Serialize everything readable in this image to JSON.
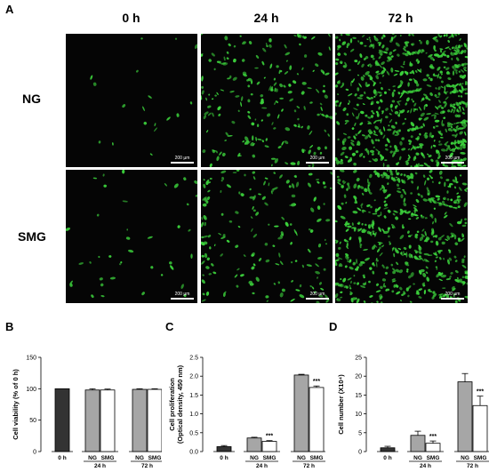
{
  "figure": {
    "panel_labels": [
      "A",
      "B",
      "C",
      "D"
    ],
    "column_headers": [
      "0 h",
      "24 h",
      "72 h"
    ],
    "row_headers": [
      "NG",
      "SMG"
    ],
    "scale_bar_label": "200 µm",
    "colors": {
      "micro_bg": "#050505",
      "cells": "#3cd23c",
      "bar_dark": "#333333",
      "bar_grey": "#a6a6a6",
      "bar_white": "#ffffff"
    }
  },
  "chart_data": [
    {
      "type": "bar",
      "panel": "B",
      "ylabel": "Cell viability (% of 0 h)",
      "ylim": [
        0,
        150
      ],
      "yticks": [
        "0",
        "50",
        "100",
        "150"
      ],
      "bars": [
        {
          "group": "0 h",
          "label": "",
          "value": 100,
          "err": 0,
          "fill": "dark",
          "sig": ""
        },
        {
          "group": "24 h",
          "label": "NG",
          "value": 98,
          "err": 2,
          "fill": "grey",
          "sig": ""
        },
        {
          "group": "24 h",
          "label": "SMG",
          "value": 98,
          "err": 1.5,
          "fill": "white",
          "sig": ""
        },
        {
          "group": "72 h",
          "label": "NG",
          "value": 99,
          "err": 1,
          "fill": "grey",
          "sig": ""
        },
        {
          "group": "72 h",
          "label": "SMG",
          "value": 99,
          "err": 1,
          "fill": "white",
          "sig": ""
        }
      ]
    },
    {
      "type": "bar",
      "panel": "C",
      "ylabel": "Cell proliferation (Optical density, 450 nm)",
      "ylabel_lines": [
        "Cell proliferation",
        "(Optical density, 450 nm)"
      ],
      "ylim": [
        0,
        2.5
      ],
      "yticks": [
        "0.0",
        "0.5",
        "1.0",
        "1.5",
        "2.0",
        "2.5"
      ],
      "bars": [
        {
          "group": "0 h",
          "label": "",
          "value": 0.13,
          "err": 0.03,
          "fill": "dark",
          "sig": ""
        },
        {
          "group": "24 h",
          "label": "NG",
          "value": 0.36,
          "err": 0.02,
          "fill": "grey",
          "sig": ""
        },
        {
          "group": "24 h",
          "label": "SMG",
          "value": 0.27,
          "err": 0.02,
          "fill": "white",
          "sig": "***"
        },
        {
          "group": "72 h",
          "label": "NG",
          "value": 2.03,
          "err": 0.02,
          "fill": "grey",
          "sig": ""
        },
        {
          "group": "72 h",
          "label": "SMG",
          "value": 1.7,
          "err": 0.04,
          "fill": "white",
          "sig": "***"
        }
      ]
    },
    {
      "type": "bar",
      "panel": "D",
      "ylabel": "Cell number (X10⁴)",
      "ylim": [
        0,
        25
      ],
      "yticks": [
        "0",
        "5",
        "10",
        "15",
        "20",
        "25"
      ],
      "bars": [
        {
          "group": "0 h",
          "label": "",
          "value": 1,
          "err": 0.4,
          "fill": "dark",
          "sig": ""
        },
        {
          "group": "24 h",
          "label": "NG",
          "value": 4.3,
          "err": 1.1,
          "fill": "grey",
          "sig": ""
        },
        {
          "group": "24 h",
          "label": "SMG",
          "value": 2.2,
          "err": 0.6,
          "fill": "white",
          "sig": "***"
        },
        {
          "group": "72 h",
          "label": "NG",
          "value": 18.5,
          "err": 2.2,
          "fill": "grey",
          "sig": ""
        },
        {
          "group": "72 h",
          "label": "SMG",
          "value": 12.2,
          "err": 2.5,
          "fill": "white",
          "sig": "***"
        }
      ]
    }
  ]
}
